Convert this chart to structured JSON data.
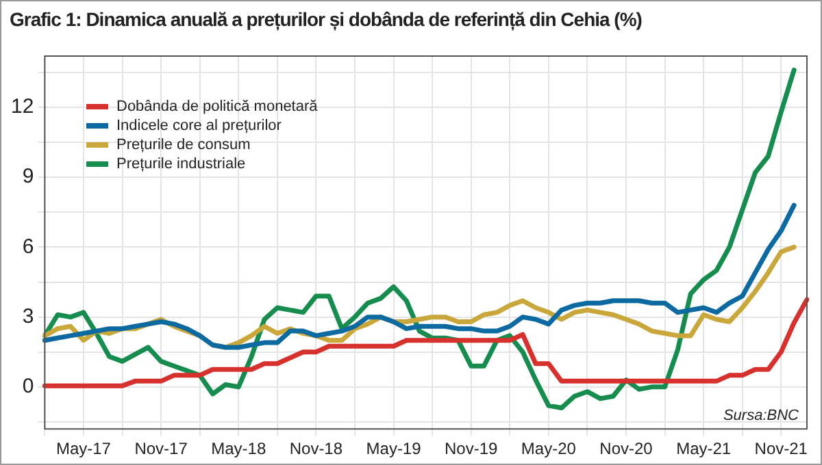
{
  "chart_data": {
    "type": "line",
    "title": "Grafic 1: Dinamica anuală a prețurilor și dobânda de referință din Cehia (%)",
    "categories": [
      null,
      null,
      null,
      "May-17",
      null,
      null,
      null,
      null,
      null,
      "Nov-17",
      null,
      null,
      null,
      null,
      null,
      "May-18",
      null,
      null,
      null,
      null,
      null,
      "Nov-18",
      null,
      null,
      null,
      null,
      null,
      "May-19",
      null,
      null,
      null,
      null,
      null,
      "Nov-19",
      null,
      null,
      null,
      null,
      null,
      "May-20",
      null,
      null,
      null,
      null,
      null,
      "Nov-20",
      null,
      null,
      null,
      null,
      null,
      "May-21",
      null,
      null,
      null,
      null,
      null,
      "Nov-21",
      null,
      null
    ],
    "series": [
      {
        "name": "Dobânda de politică monetară",
        "color": "#d7312e",
        "values": [
          0.05,
          0.05,
          0.05,
          0.05,
          0.05,
          0.05,
          0.05,
          0.25,
          0.25,
          0.25,
          0.5,
          0.5,
          0.5,
          0.75,
          0.75,
          0.75,
          0.75,
          1.0,
          1.0,
          1.25,
          1.5,
          1.5,
          1.75,
          1.75,
          1.75,
          1.75,
          1.75,
          1.75,
          2.0,
          2.0,
          2.0,
          2.0,
          2.0,
          2.0,
          2.0,
          2.0,
          2.0,
          2.25,
          1.0,
          1.0,
          0.25,
          0.25,
          0.25,
          0.25,
          0.25,
          0.25,
          0.25,
          0.25,
          0.25,
          0.25,
          0.25,
          0.25,
          0.25,
          0.5,
          0.5,
          0.75,
          0.75,
          1.5,
          2.75,
          3.75
        ]
      },
      {
        "name": "Indicele core al prețurilor",
        "color": "#0d6aa0",
        "values": [
          2.0,
          2.1,
          2.2,
          2.3,
          2.4,
          2.5,
          2.5,
          2.6,
          2.7,
          2.8,
          2.7,
          2.5,
          2.2,
          1.8,
          1.7,
          1.7,
          1.8,
          1.9,
          1.9,
          2.4,
          2.4,
          2.2,
          2.3,
          2.4,
          2.6,
          3.0,
          3.0,
          2.8,
          2.5,
          2.6,
          2.6,
          2.6,
          2.5,
          2.5,
          2.4,
          2.4,
          2.6,
          3.0,
          2.9,
          2.7,
          3.3,
          3.5,
          3.6,
          3.6,
          3.7,
          3.7,
          3.7,
          3.6,
          3.6,
          3.2,
          3.3,
          3.4,
          3.2,
          3.6,
          3.9,
          4.9,
          5.9,
          6.7,
          7.8,
          null
        ]
      },
      {
        "name": "Prețurile de consum",
        "color": "#c9a73b",
        "values": [
          2.2,
          2.5,
          2.6,
          2.0,
          2.4,
          2.3,
          2.5,
          2.5,
          2.7,
          2.9,
          2.6,
          2.4,
          2.2,
          1.8,
          1.7,
          1.9,
          2.2,
          2.6,
          2.3,
          2.5,
          2.3,
          2.2,
          2.0,
          2.0,
          2.5,
          2.7,
          3.0,
          2.8,
          2.8,
          2.9,
          3.0,
          3.0,
          2.8,
          2.8,
          3.1,
          3.2,
          3.5,
          3.7,
          3.4,
          3.2,
          2.9,
          3.2,
          3.3,
          3.2,
          3.1,
          2.9,
          2.7,
          2.4,
          2.3,
          2.2,
          2.2,
          3.1,
          2.9,
          2.8,
          3.4,
          4.1,
          4.9,
          5.8,
          6.0,
          null
        ]
      },
      {
        "name": "Prețurile industriale",
        "color": "#168c4f",
        "values": [
          2.2,
          3.1,
          3.0,
          3.2,
          2.3,
          1.3,
          1.1,
          1.4,
          1.7,
          1.1,
          0.9,
          0.7,
          0.5,
          -0.3,
          0.1,
          0.0,
          1.3,
          2.9,
          3.4,
          3.3,
          3.2,
          3.9,
          3.9,
          2.5,
          3.0,
          3.6,
          3.8,
          4.3,
          3.7,
          2.4,
          2.1,
          2.1,
          2.0,
          0.9,
          0.9,
          2.0,
          2.2,
          1.5,
          0.3,
          -0.8,
          -0.9,
          -0.4,
          -0.2,
          -0.5,
          -0.4,
          0.3,
          -0.1,
          0.0,
          0.0,
          1.6,
          4.0,
          4.6,
          5.0,
          6.0,
          7.6,
          9.2,
          9.9,
          11.8,
          13.6,
          null
        ]
      }
    ],
    "ylim": [
      -1.8,
      14.2
    ],
    "yticks": [
      {
        "value": -1.5,
        "label": null
      },
      0,
      {
        "value": 1.5,
        "label": null
      },
      3,
      {
        "value": 4.5,
        "label": null
      },
      6,
      {
        "value": 7.5,
        "label": null
      },
      9,
      {
        "value": 10.5,
        "label": null
      },
      12,
      {
        "value": 13.5,
        "label": null
      }
    ],
    "grid": true,
    "legend": "top left",
    "marker": "none",
    "line_style": "solid",
    "annotations": [
      "Sursa:BNC"
    ]
  }
}
